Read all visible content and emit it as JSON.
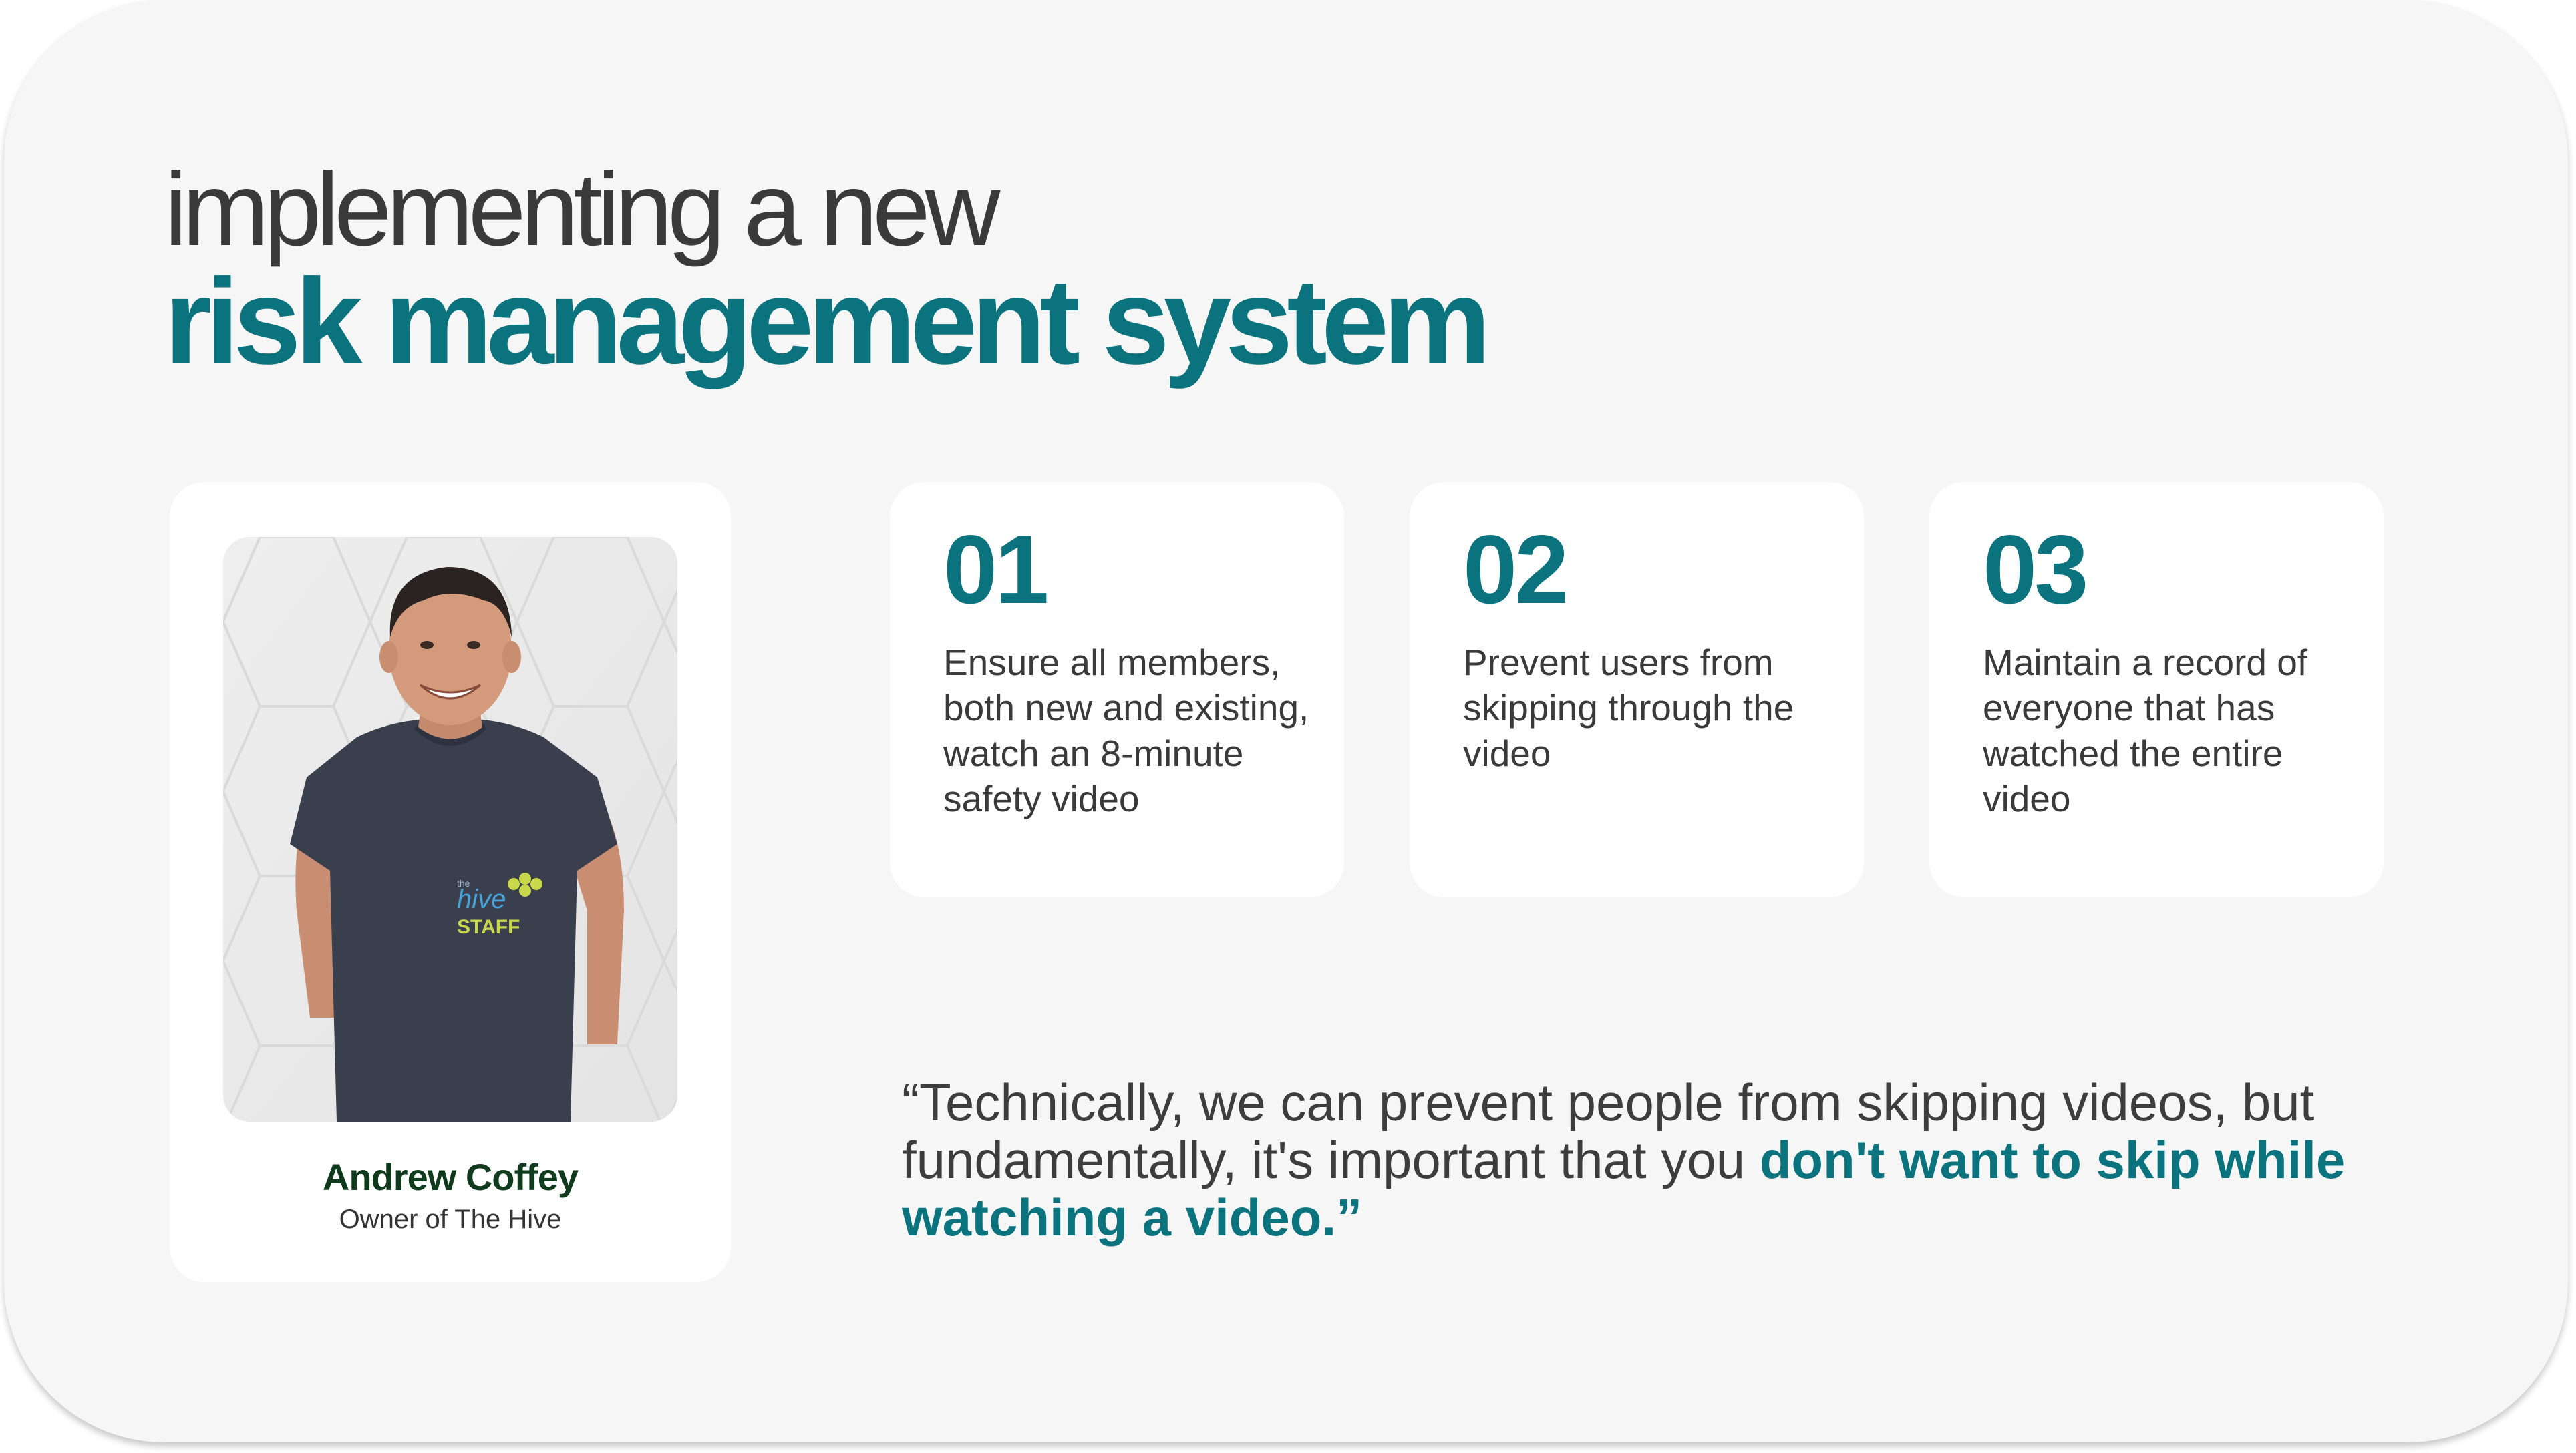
{
  "heading": {
    "line1": "implementing a new",
    "line2": "risk management system"
  },
  "profile": {
    "name": "Andrew Coffey",
    "role": "Owner of The Hive",
    "shirt_logo": {
      "small": "the",
      "word": "hive",
      "staff": "STAFF"
    }
  },
  "steps": [
    {
      "number": "01",
      "text": "Ensure all members, both new and existing, watch an 8-minute safety video"
    },
    {
      "number": "02",
      "text": "Prevent users from skipping through the video"
    },
    {
      "number": "03",
      "text": "Maintain a record of everyone that has watched the entire video"
    }
  ],
  "quote": {
    "part1": "“Technically, we can prevent people from skipping videos, but fundamentally, it's important that you ",
    "highlight": "don't want to skip while watching a video.”"
  },
  "colors": {
    "accent": "#0b737e",
    "name": "#0f3a1c",
    "card_background": "#f6f6f6",
    "panel_background": "#ffffff"
  }
}
